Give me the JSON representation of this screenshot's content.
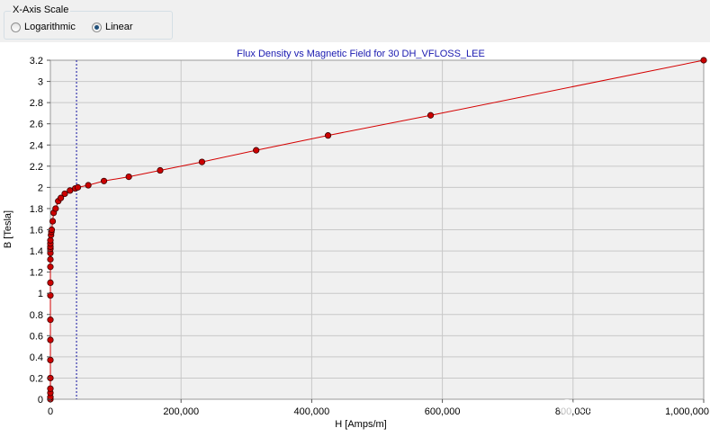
{
  "scale_group": {
    "title": "X-Axis Scale",
    "options": [
      {
        "label": "Logarithmic",
        "checked": false
      },
      {
        "label": "Linear",
        "checked": true
      }
    ]
  },
  "watermark": "EDC电驱未来",
  "colors": {
    "series": "#d40000",
    "marker_fill": "#cc0000",
    "marker_stroke": "#3a0000",
    "title": "#1a1ab0",
    "grid": "#c8c8c8",
    "cursor_line": "#1010a0"
  },
  "chart_data": {
    "type": "line",
    "title": "Flux Density  vs Magnetic Field for 30 DH_VFLOSS_LEE",
    "xlabel": "H [Amps/m]",
    "ylabel": "B [Tesla]",
    "xlim": [
      0,
      1000000
    ],
    "ylim": [
      0,
      3.2
    ],
    "x_ticks": [
      0,
      200000,
      400000,
      600000,
      800000,
      1000000
    ],
    "x_tick_labels": [
      "0",
      "200,000",
      "400,000",
      "600,000",
      "800,000",
      "1,000,000"
    ],
    "y_ticks": [
      0,
      0.2,
      0.4,
      0.6,
      0.8,
      1,
      1.2,
      1.4,
      1.6,
      1.8,
      2,
      2.2,
      2.4,
      2.6,
      2.8,
      3,
      3.2
    ],
    "y_tick_labels": [
      "0",
      "0.2",
      "0.4",
      "0.6",
      "0.8",
      "1",
      "1.2",
      "1.4",
      "1.6",
      "1.8",
      "2",
      "2.2",
      "2.4",
      "2.6",
      "2.8",
      "3",
      "3.2"
    ],
    "grid": true,
    "cursor_x": 40000,
    "series": [
      {
        "x": [
          0,
          0,
          0,
          0,
          0,
          0,
          0,
          0,
          0,
          0,
          0,
          0,
          0,
          0,
          0,
          0,
          0,
          1000,
          1500,
          2000,
          3500,
          5000,
          8000,
          12000,
          16000,
          22000,
          30000,
          38000,
          42000,
          58000,
          82000,
          120000,
          168000,
          232000,
          315000,
          425000,
          582000,
          1000000
        ],
        "y": [
          0,
          0.02,
          0.06,
          0.1,
          0.2,
          0.37,
          0.56,
          0.75,
          0.98,
          1.1,
          1.25,
          1.32,
          1.38,
          1.42,
          1.44,
          1.47,
          1.5,
          1.55,
          1.58,
          1.6,
          1.68,
          1.76,
          1.8,
          1.87,
          1.9,
          1.94,
          1.97,
          1.99,
          2.0,
          2.02,
          2.06,
          2.1,
          2.16,
          2.24,
          2.35,
          2.49,
          2.68,
          3.2
        ]
      }
    ]
  }
}
